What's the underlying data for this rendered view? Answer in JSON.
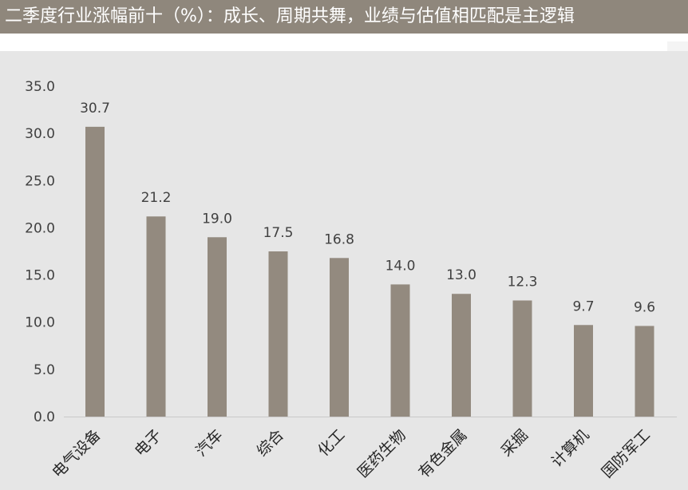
{
  "title": "二季度行业涨幅前十（%）：成长、周期共舞，业绩与估值相匹配是主逻辑",
  "colors": {
    "bar": "#938a7f",
    "title_bg": "#8f877c",
    "plot_bg": "#e6e6e6"
  },
  "chart_data": {
    "type": "bar",
    "title": "",
    "xlabel": "",
    "ylabel": "",
    "categories": [
      "电气设备",
      "电子",
      "汽车",
      "综合",
      "化工",
      "医药生物",
      "有色金属",
      "采掘",
      "计算机",
      "国防军工"
    ],
    "values": [
      30.7,
      21.2,
      19.0,
      17.5,
      16.8,
      14.0,
      13.0,
      12.3,
      9.7,
      9.6
    ],
    "data_labels": [
      "30.7",
      "21.2",
      "19.0",
      "17.5",
      "16.8",
      "14.0",
      "13.0",
      "12.3",
      "9.7",
      "9.6"
    ],
    "ylim": [
      0,
      35
    ],
    "yticks": [
      "0.0",
      "5.0",
      "10.0",
      "15.0",
      "20.0",
      "25.0",
      "30.0",
      "35.0"
    ],
    "grid": false,
    "legend": "none"
  }
}
